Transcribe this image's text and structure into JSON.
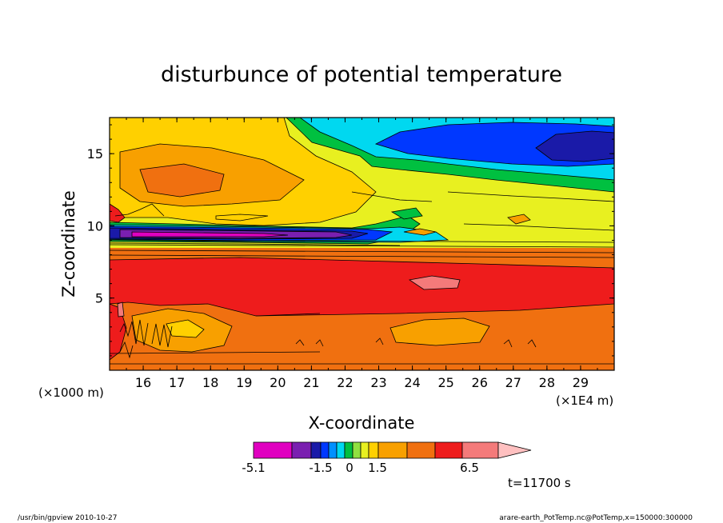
{
  "chart_data": {
    "type": "heatmap",
    "title": "disturbunce of potential temperature",
    "xlabel": "X-coordinate",
    "ylabel": "Z-coordinate",
    "x_unit": "(×1E4 m)",
    "y_unit": "(×1000 m)",
    "xlim": [
      15,
      30
    ],
    "ylim": [
      0,
      17.5
    ],
    "x_ticks": [
      16,
      17,
      18,
      19,
      20,
      21,
      22,
      23,
      24,
      25,
      26,
      27,
      28,
      29
    ],
    "y_ticks": [
      5,
      10,
      15
    ],
    "colorbar": {
      "tick_labels": [
        "-5.1",
        "-1.5",
        "0",
        "1.5",
        "6.5"
      ],
      "colors": [
        "#e000c0",
        "#7a1fb0",
        "#1a1aa8",
        "#0038ff",
        "#0090ff",
        "#00d8f0",
        "#00c040",
        "#90e040",
        "#e8f020",
        "#ffd000",
        "#f8a000",
        "#f07010",
        "#ee1c1c",
        "#f47a7a",
        "#ffc0c0"
      ]
    },
    "time_label": "t=11700 s"
  },
  "footer": {
    "left": "/usr/bin/gpview   2010-10-27",
    "right": "arare-earth_PotTemp.nc@PotTemp,x=150000:300000"
  }
}
